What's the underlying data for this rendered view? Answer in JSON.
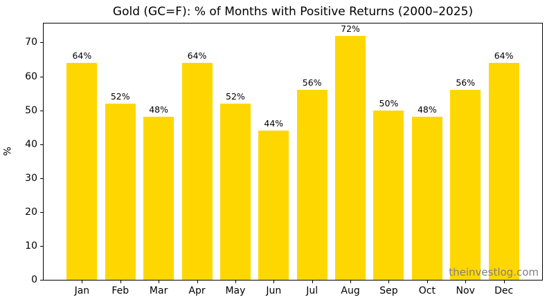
{
  "chart_data": {
    "type": "bar",
    "title": "Gold (GC=F): % of Months with Positive Returns (2000–2025)",
    "ylabel": "%",
    "xlabel": "",
    "categories": [
      "Jan",
      "Feb",
      "Mar",
      "Apr",
      "May",
      "Jun",
      "Jul",
      "Aug",
      "Sep",
      "Oct",
      "Nov",
      "Dec"
    ],
    "values": [
      64,
      52,
      48,
      64,
      52,
      44,
      56,
      72,
      50,
      48,
      56,
      64
    ],
    "bar_labels": [
      "64%",
      "52%",
      "48%",
      "64%",
      "52%",
      "44%",
      "56%",
      "72%",
      "50%",
      "48%",
      "56%",
      "64%"
    ],
    "ylim": [
      0,
      75.6
    ],
    "yticks": [
      0,
      10,
      20,
      30,
      40,
      50,
      60,
      70
    ],
    "grid": false,
    "legend": "none",
    "bar_color": "#FFD700",
    "text_color": "#000000",
    "watermark": "theinvestlog.com",
    "watermark_color": "#808080"
  }
}
